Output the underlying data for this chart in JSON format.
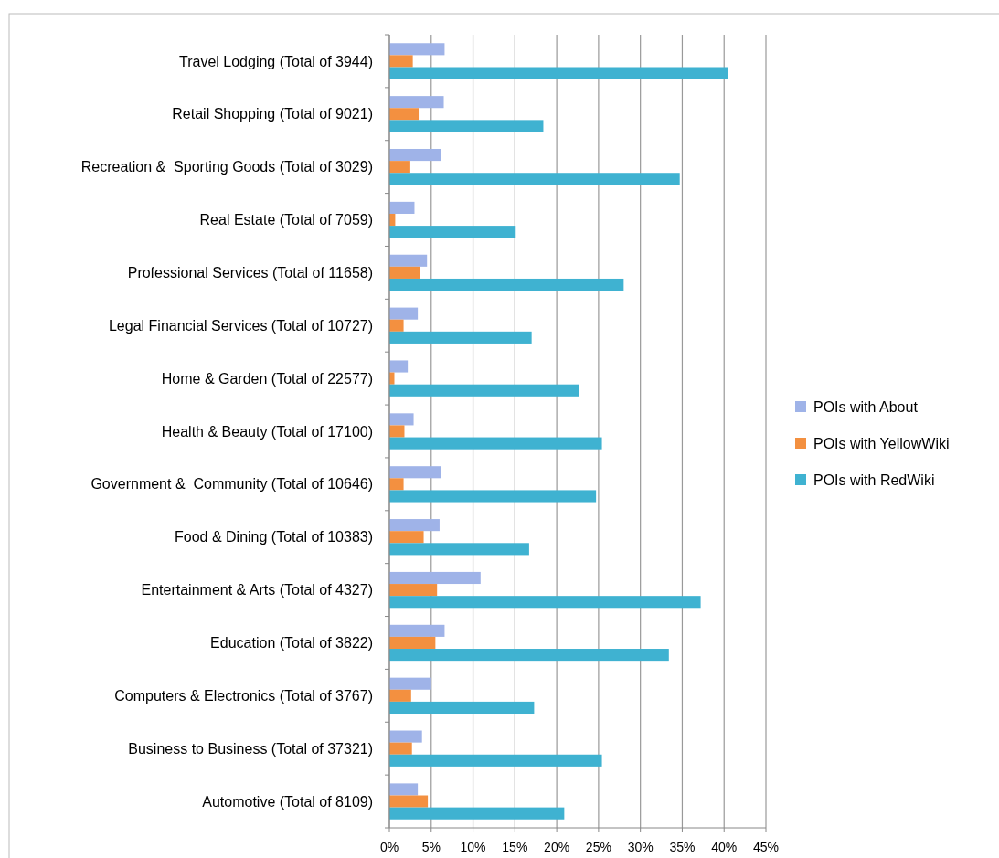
{
  "chart_data": {
    "type": "bar",
    "orientation": "horizontal",
    "categories": [
      "Travel Lodging (Total of 3944)",
      "Retail Shopping (Total of 9021)",
      "Recreation &  Sporting Goods (Total of 3029)",
      "Real Estate (Total of 7059)",
      "Professional Services (Total of 11658)",
      "Legal Financial Services (Total of 10727)",
      "Home & Garden (Total of 22577)",
      "Health & Beauty (Total of 17100)",
      "Government &  Community (Total of 10646)",
      "Food & Dining (Total of 10383)",
      "Entertainment & Arts (Total of 4327)",
      "Education (Total of 3822)",
      "Computers & Electronics (Total of 3767)",
      "Business to Business (Total of 37321)",
      "Automotive (Total of 8109)"
    ],
    "series": [
      {
        "name": "POIs with About",
        "color": "#9fb3e8",
        "values": [
          6.6,
          6.5,
          6.2,
          3.0,
          4.5,
          3.4,
          2.2,
          2.9,
          6.2,
          6.0,
          10.9,
          6.6,
          5.0,
          3.9,
          3.4
        ]
      },
      {
        "name": "POIs with YellowWiki",
        "color": "#f39040",
        "values": [
          2.8,
          3.5,
          2.5,
          0.7,
          3.7,
          1.7,
          0.6,
          1.8,
          1.7,
          4.1,
          5.7,
          5.5,
          2.6,
          2.7,
          4.6
        ]
      },
      {
        "name": "POIs with RedWiki",
        "color": "#3fb2d1",
        "values": [
          40.5,
          18.4,
          34.7,
          15.1,
          28.0,
          17.0,
          22.7,
          25.4,
          24.7,
          16.7,
          37.2,
          33.4,
          17.3,
          25.4,
          20.9
        ]
      }
    ],
    "xlim": [
      0,
      45
    ],
    "xticks": [
      {
        "value": 0,
        "label": "0%"
      },
      {
        "value": 5,
        "label": "5%"
      },
      {
        "value": 10,
        "label": "10%"
      },
      {
        "value": 15,
        "label": "15%"
      },
      {
        "value": 20,
        "label": "20%"
      },
      {
        "value": 25,
        "label": "25%"
      },
      {
        "value": 30,
        "label": "30%"
      },
      {
        "value": 35,
        "label": "35%"
      },
      {
        "value": 40,
        "label": "40%"
      },
      {
        "value": 45,
        "label": "45%"
      }
    ],
    "grid": "x",
    "legend": "right"
  }
}
